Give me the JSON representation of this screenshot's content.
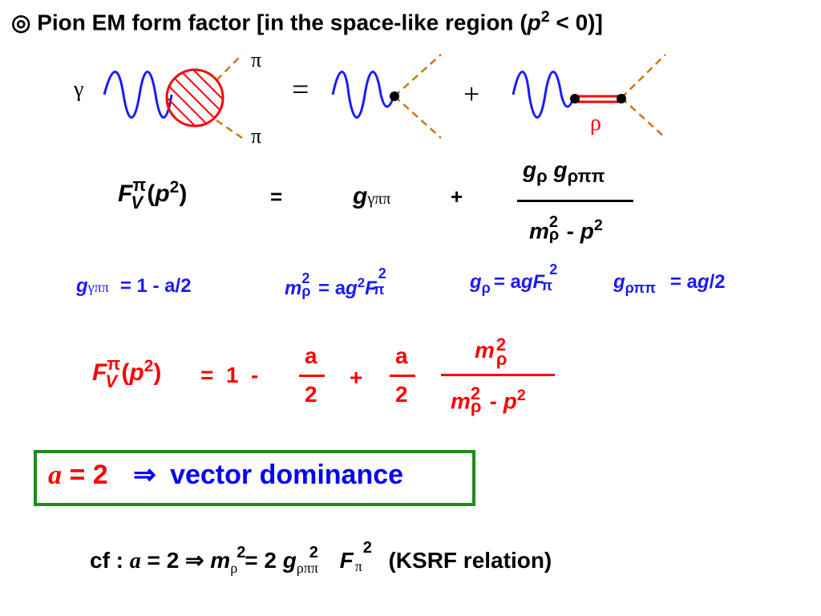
{
  "title": {
    "symbol": "◎",
    "text": "Pion EM form factor [in the space-like region (",
    "p": "p",
    "sup": "2",
    "tail": " < 0)]"
  },
  "diagram": {
    "gamma": "γ",
    "pi_top": "π",
    "pi_bottom": "π",
    "equals": "=",
    "plus": "+",
    "rho": "ρ",
    "colors": {
      "photon": "#1a1aff",
      "blob": "#ff0000",
      "pion": "#c87814",
      "rho_line": "#ff0000"
    }
  },
  "eq1": {
    "F": "F",
    "F_sup": "π",
    "F_sub": "V",
    "arg_open": "(",
    "p": "p",
    "p_sup": "2",
    "arg_close": ")",
    "equals": "=",
    "g": "g",
    "g_sub": "γππ",
    "plus": "+",
    "num_g1": "g",
    "num_g1_sub": "ρ",
    "num_g2": "g",
    "num_g2_sub": "ρππ",
    "den_m": "m",
    "den_m_sup": "2",
    "den_m_sub": "ρ",
    "den_minus": " - ",
    "den_p": "p",
    "den_p_sup": "2"
  },
  "relations": {
    "r1_g": "g",
    "r1_sub": "γππ",
    "r1_rhs": "= 1 - a/2",
    "r2_m": "m",
    "r2_sup": "2",
    "r2_sub": "ρ",
    "r2_eq": "= a",
    "r2_g": "g",
    "r2_g_sup": "2",
    "r2_F": "F",
    "r2_F_sup": "2",
    "r2_F_sub": "π",
    "r3_g": "g",
    "r3_sub": "ρ",
    "r3_eq": "= a",
    "r3_g2": "g",
    "r3_F": "F",
    "r3_F_sup": "2",
    "r3_F_sub": "π",
    "r4_g": "g",
    "r4_sub": "ρππ",
    "r4_eq": "= a",
    "r4_g2": "g",
    "r4_tail": "/2"
  },
  "eq2": {
    "F": "F",
    "F_sup": "π",
    "F_sub": "V",
    "arg_open": "(",
    "p": "p",
    "p_sup": "2",
    "arg_close": ")",
    "equals_one_minus": "=  1  -",
    "frac1_num": "a",
    "frac1_den": "2",
    "plus": "+",
    "frac2_num": "a",
    "frac2_den": "2",
    "frac3_num_m": "m",
    "frac3_num_sup": "2",
    "frac3_num_sub": "ρ",
    "frac3_den_m": "m",
    "frac3_den_sup": "2",
    "frac3_den_sub": "ρ",
    "frac3_den_minus": " - ",
    "frac3_den_p": "p",
    "frac3_den_p_sup": "2"
  },
  "box": {
    "a": "a",
    "eq_two": " = 2",
    "arrow": "⇒",
    "text": "vector dominance"
  },
  "cf": {
    "label": "cf : ",
    "a": "a",
    "eq": " = 2 ⇒ ",
    "m": "m",
    "m_sub": "ρ",
    "m_sup": "2",
    "eq2": "= 2 ",
    "g": "g",
    "g_sub": "ρππ",
    "g_sup": "2",
    "F": "F",
    "F_sub": "π",
    "F_sup": "2",
    "relation": "(KSRF relation)"
  }
}
